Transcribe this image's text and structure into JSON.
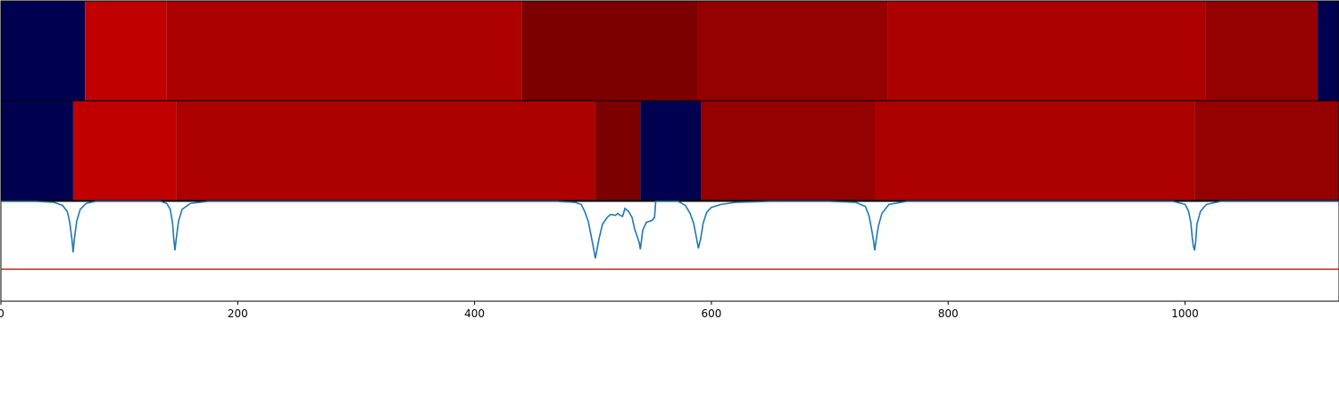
{
  "chart_data": {
    "type": "heatmap",
    "xlim": [
      0,
      1130
    ],
    "x_ticks": [
      0,
      200,
      400,
      600,
      800,
      1000
    ],
    "x_tick_labels": [
      "0",
      "200",
      "400",
      "600",
      "800",
      "1000"
    ],
    "grid": false,
    "segment_rows": [
      {
        "segments": [
          {
            "start": 0,
            "end": 71,
            "color": "#000050"
          },
          {
            "start": 71,
            "end": 140,
            "color": "#c00000"
          },
          {
            "start": 140,
            "end": 440,
            "color": "#ad0000"
          },
          {
            "start": 440,
            "end": 588,
            "color": "#7c0000"
          },
          {
            "start": 588,
            "end": 749,
            "color": "#950000"
          },
          {
            "start": 749,
            "end": 1017,
            "color": "#ad0000"
          },
          {
            "start": 1017,
            "end": 1112,
            "color": "#950000"
          },
          {
            "start": 1112,
            "end": 1130,
            "color": "#000050"
          }
        ]
      },
      {
        "segments": [
          {
            "start": 0,
            "end": 61,
            "color": "#000050"
          },
          {
            "start": 61,
            "end": 148,
            "color": "#c00000"
          },
          {
            "start": 148,
            "end": 502,
            "color": "#ad0000"
          },
          {
            "start": 502,
            "end": 540,
            "color": "#7c0000"
          },
          {
            "start": 540,
            "end": 591,
            "color": "#000050"
          },
          {
            "start": 591,
            "end": 738,
            "color": "#950000"
          },
          {
            "start": 738,
            "end": 1008,
            "color": "#ad0000"
          },
          {
            "start": 1008,
            "end": 1130,
            "color": "#950000"
          }
        ]
      }
    ],
    "signal": {
      "color": "#1f77b4",
      "ylim": [
        0,
        1
      ],
      "points": [
        [
          0,
          1.0
        ],
        [
          30,
          1.0
        ],
        [
          45,
          0.99
        ],
        [
          52,
          0.96
        ],
        [
          56,
          0.9
        ],
        [
          58,
          0.8
        ],
        [
          60,
          0.62
        ],
        [
          61,
          0.49
        ],
        [
          62,
          0.62
        ],
        [
          64,
          0.8
        ],
        [
          67,
          0.92
        ],
        [
          72,
          0.98
        ],
        [
          80,
          1.0
        ],
        [
          135,
          1.0
        ],
        [
          140,
          0.98
        ],
        [
          143,
          0.92
        ],
        [
          145,
          0.78
        ],
        [
          146,
          0.62
        ],
        [
          147,
          0.51
        ],
        [
          148,
          0.62
        ],
        [
          150,
          0.8
        ],
        [
          153,
          0.92
        ],
        [
          160,
          0.98
        ],
        [
          175,
          1.0
        ],
        [
          470,
          1.0
        ],
        [
          485,
          0.99
        ],
        [
          490,
          0.97
        ],
        [
          493,
          0.9
        ],
        [
          496,
          0.8
        ],
        [
          498,
          0.68
        ],
        [
          500,
          0.56
        ],
        [
          502,
          0.43
        ],
        [
          505,
          0.62
        ],
        [
          508,
          0.77
        ],
        [
          512,
          0.84
        ],
        [
          515,
          0.87
        ],
        [
          519,
          0.86
        ],
        [
          521,
          0.88
        ],
        [
          523,
          0.86
        ],
        [
          525,
          0.85
        ],
        [
          527,
          0.93
        ],
        [
          530,
          0.9
        ],
        [
          533,
          0.84
        ],
        [
          535,
          0.73
        ],
        [
          537,
          0.66
        ],
        [
          539,
          0.59
        ],
        [
          540,
          0.52
        ],
        [
          542,
          0.71
        ],
        [
          545,
          0.79
        ],
        [
          550,
          0.81
        ],
        [
          552,
          0.84
        ],
        [
          553,
          1.0
        ],
        [
          572,
          1.0
        ],
        [
          578,
          0.96
        ],
        [
          582,
          0.88
        ],
        [
          585,
          0.78
        ],
        [
          587,
          0.66
        ],
        [
          589,
          0.53
        ],
        [
          591,
          0.63
        ],
        [
          593,
          0.78
        ],
        [
          596,
          0.89
        ],
        [
          600,
          0.94
        ],
        [
          608,
          0.97
        ],
        [
          620,
          0.99
        ],
        [
          650,
          1.0
        ],
        [
          700,
          1.0
        ],
        [
          722,
          0.99
        ],
        [
          730,
          0.95
        ],
        [
          733,
          0.86
        ],
        [
          735,
          0.74
        ],
        [
          737,
          0.6
        ],
        [
          738,
          0.51
        ],
        [
          739,
          0.6
        ],
        [
          741,
          0.75
        ],
        [
          744,
          0.88
        ],
        [
          750,
          0.97
        ],
        [
          765,
          1.0
        ],
        [
          990,
          1.0
        ],
        [
          1000,
          0.97
        ],
        [
          1003,
          0.9
        ],
        [
          1005,
          0.78
        ],
        [
          1006,
          0.64
        ],
        [
          1007,
          0.55
        ],
        [
          1008,
          0.51
        ],
        [
          1009,
          0.6
        ],
        [
          1010,
          0.77
        ],
        [
          1013,
          0.9
        ],
        [
          1018,
          0.97
        ],
        [
          1030,
          1.0
        ],
        [
          1130,
          1.0
        ]
      ]
    },
    "threshold": {
      "value": 0.32,
      "color": "#e41a1c"
    }
  }
}
